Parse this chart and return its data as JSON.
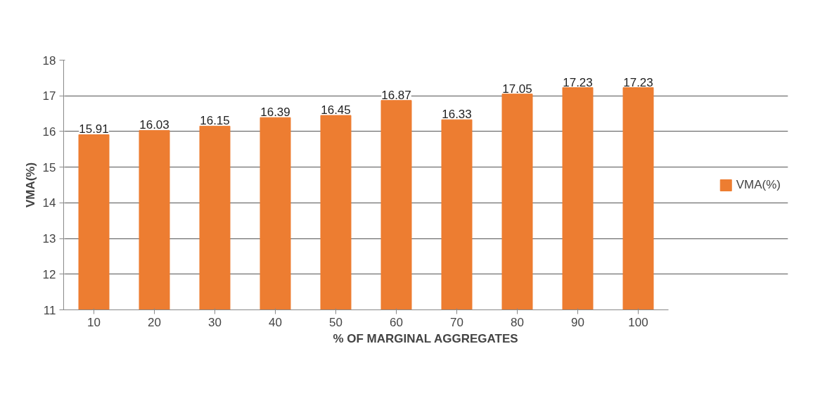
{
  "chart_data": {
    "type": "bar",
    "xlabel": "% OF MARGINAL AGGREGATES",
    "ylabel": "VMA(%)",
    "categories": [
      "10",
      "20",
      "30",
      "40",
      "50",
      "60",
      "70",
      "80",
      "90",
      "100"
    ],
    "series": [
      {
        "name": "VMA(%)",
        "color": "#ed7d31",
        "values": [
          15.91,
          16.03,
          16.15,
          16.39,
          16.45,
          16.87,
          16.33,
          17.05,
          17.23,
          17.23
        ]
      }
    ],
    "ylim": [
      11,
      18
    ],
    "yticks": [
      11,
      12,
      13,
      14,
      15,
      16,
      17,
      18
    ],
    "grid": "y",
    "legend": "right",
    "data_labels": true
  }
}
